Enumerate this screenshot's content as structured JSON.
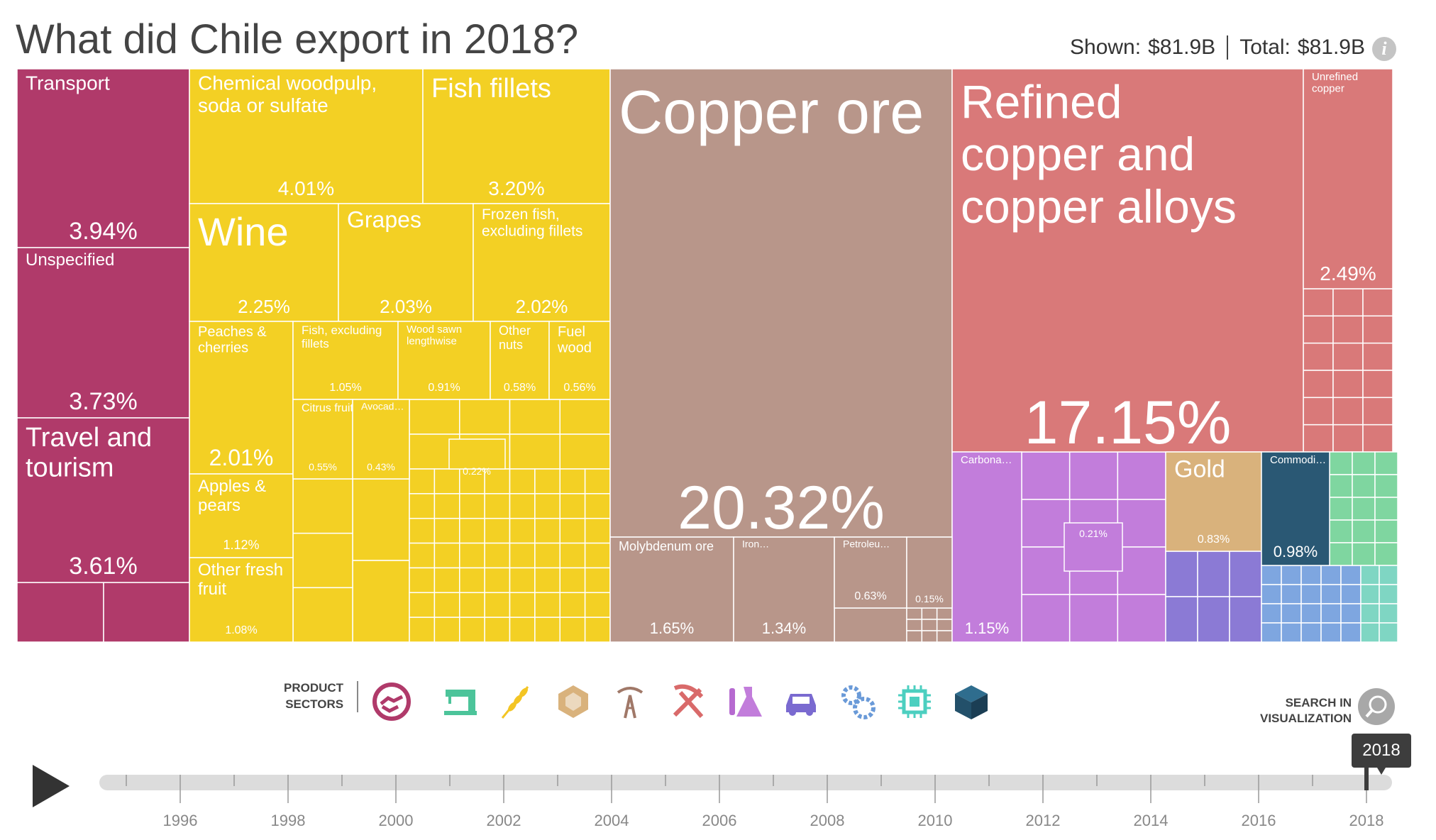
{
  "title": "What did Chile export in 2018?",
  "totals": {
    "shown_label": "Shown:",
    "shown_value": "$81.9B",
    "total_label": "Total:",
    "total_value": "$81.9B"
  },
  "info_icon": "info-icon",
  "sectors": {
    "label_line1": "PRODUCT",
    "label_line2": "SECTORS",
    "icons": [
      "services-handshake-icon",
      "textiles-sewing-machine-icon",
      "agriculture-wheat-icon",
      "stone-gem-icon",
      "minerals-oil-derrick-icon",
      "metals-pickaxe-icon",
      "chemicals-flask-icon",
      "vehicles-car-icon",
      "machinery-gears-icon",
      "electronics-chip-icon",
      "other-cube-icon"
    ]
  },
  "search": {
    "label_line1": "SEARCH IN",
    "label_line2": "VISUALIZATION"
  },
  "play_icon": "play-icon",
  "timeline": {
    "selected_year": "2018",
    "year_labels": [
      "1996",
      "1998",
      "2000",
      "2002",
      "2004",
      "2006",
      "2008",
      "2010",
      "2012",
      "2014",
      "2016",
      "2018"
    ],
    "start_year": 1995,
    "end_year": 2018
  },
  "colors": {
    "services": "#b03a6a",
    "agriculture": "#f3d024",
    "minerals": "#b8968a",
    "metals": "#d97979",
    "chemicals": "#c27ddb",
    "stone": "#d9b27c",
    "vehicles": "#8b7ad5",
    "machinery": "#7ea6e0",
    "electronics": "#7fd6c3",
    "other": "#2a5874",
    "textiles": "#7fd6a0"
  },
  "chart_data": {
    "type": "treemap",
    "title": "What did Chile export in 2018?",
    "unit": "% of total exports",
    "items": [
      {
        "name": "Transport",
        "sector": "services",
        "value": 3.94,
        "pct": "3.94%"
      },
      {
        "name": "Unspecified",
        "sector": "services",
        "value": 3.73,
        "pct": "3.73%"
      },
      {
        "name": "Travel and tourism",
        "sector": "services",
        "value": 3.61,
        "pct": "3.61%"
      },
      {
        "name": "Chemical woodpulp, soda or sulfate",
        "sector": "agriculture",
        "value": 4.01,
        "pct": "4.01%"
      },
      {
        "name": "Fish fillets",
        "sector": "agriculture",
        "value": 3.2,
        "pct": "3.20%"
      },
      {
        "name": "Wine",
        "sector": "agriculture",
        "value": 2.25,
        "pct": "2.25%"
      },
      {
        "name": "Grapes",
        "sector": "agriculture",
        "value": 2.03,
        "pct": "2.03%"
      },
      {
        "name": "Frozen fish, excluding fillets",
        "sector": "agriculture",
        "value": 2.02,
        "pct": "2.02%"
      },
      {
        "name": "Peaches & cherries",
        "sector": "agriculture",
        "value": 2.01,
        "pct": "2.01%"
      },
      {
        "name": "Fish, excluding fillets",
        "sector": "agriculture",
        "value": 1.05,
        "pct": "1.05%"
      },
      {
        "name": "Wood sawn lengthwise",
        "sector": "agriculture",
        "value": 0.91,
        "pct": "0.91%"
      },
      {
        "name": "Other nuts",
        "sector": "agriculture",
        "value": 0.58,
        "pct": "0.58%"
      },
      {
        "name": "Fuel wood",
        "sector": "agriculture",
        "value": 0.56,
        "pct": "0.56%"
      },
      {
        "name": "Apples & pears",
        "sector": "agriculture",
        "value": 1.12,
        "pct": "1.12%"
      },
      {
        "name": "Other fresh fruit",
        "sector": "agriculture",
        "value": 1.08,
        "pct": "1.08%"
      },
      {
        "name": "Citrus fruit",
        "sector": "agriculture",
        "value": 0.55,
        "pct": "0.55%"
      },
      {
        "name": "Avocad…",
        "sector": "agriculture",
        "value": 0.43,
        "pct": "0.43%"
      },
      {
        "name": "",
        "sector": "agriculture",
        "value": 0.22,
        "pct": "0.22%"
      },
      {
        "name": "Copper ore",
        "sector": "minerals",
        "value": 20.32,
        "pct": "20.32%"
      },
      {
        "name": "Molybdenum ore",
        "sector": "minerals",
        "value": 1.65,
        "pct": "1.65%"
      },
      {
        "name": "Iron…",
        "sector": "minerals",
        "value": 1.34,
        "pct": "1.34%"
      },
      {
        "name": "Petroleu…",
        "sector": "minerals",
        "value": 0.63,
        "pct": "0.63%"
      },
      {
        "name": "",
        "sector": "minerals",
        "value": 0.15,
        "pct": "0.15%"
      },
      {
        "name": "Refined copper and copper alloys",
        "sector": "metals",
        "value": 17.15,
        "pct": "17.15%"
      },
      {
        "name": "Unrefined copper",
        "sector": "metals",
        "value": 2.49,
        "pct": "2.49%"
      },
      {
        "name": "Carbona…",
        "sector": "chemicals",
        "value": 1.15,
        "pct": "1.15%"
      },
      {
        "name": "",
        "sector": "chemicals",
        "value": 0.21,
        "pct": "0.21%"
      },
      {
        "name": "Gold",
        "sector": "stone",
        "value": 0.83,
        "pct": "0.83%"
      },
      {
        "name": "Commodi…",
        "sector": "other",
        "value": 0.98,
        "pct": "0.98%"
      }
    ]
  }
}
